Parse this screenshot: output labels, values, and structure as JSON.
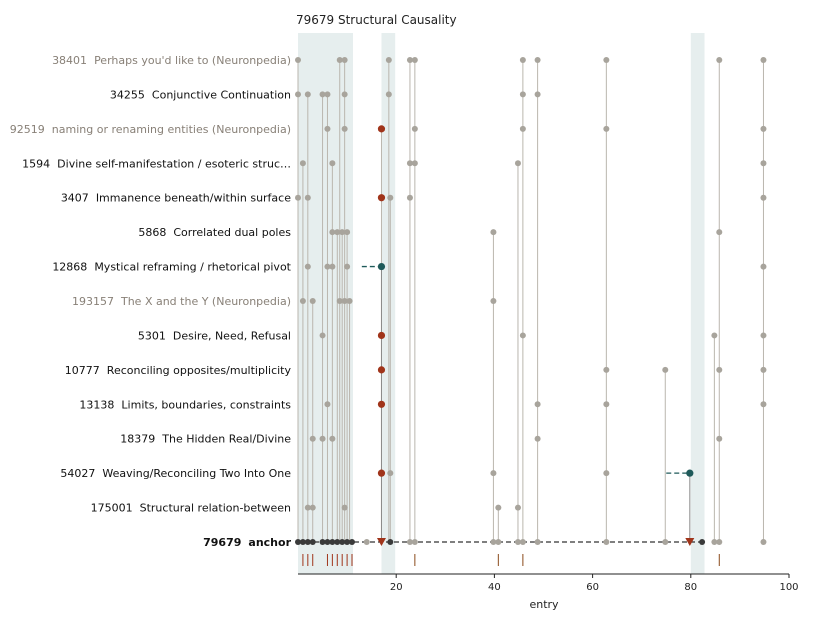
{
  "chart_data": {
    "type": "scatter",
    "title": "79679  Structural Causality",
    "xlabel": "entry",
    "ylabel": "",
    "xlim": [
      0,
      100
    ],
    "xticks": [
      20,
      40,
      60,
      80,
      100
    ],
    "grid": false,
    "shaded_x_ranges": [
      [
        0,
        11.2
      ],
      [
        17,
        19.8
      ],
      [
        80,
        82.8
      ]
    ],
    "colors": {
      "dot": "#a8a49c",
      "line": "#bab6ae",
      "anchor_dot": "#3a3a3a",
      "red": "#a0341a",
      "teal": "#1f5a5a",
      "shade": "#e6eeee",
      "faded_text": "#888077",
      "text": "#111111"
    },
    "rows": [
      {
        "id": "38401",
        "label": "Perhaps you'd like to (Neuronpedia)",
        "faded": true,
        "bold": false,
        "points": [
          0,
          8.5,
          9.5,
          18.5,
          22.8,
          23.8,
          45.8,
          48.8,
          62.8,
          85.8,
          94.8
        ],
        "red": [],
        "teal": []
      },
      {
        "id": "34255",
        "label": "Conjunctive Continuation",
        "faded": false,
        "bold": false,
        "points": [
          0,
          2,
          5,
          6,
          9.5,
          18.5,
          45.8,
          48.8
        ],
        "red": [],
        "teal": []
      },
      {
        "id": "92519",
        "label": "naming or renaming entities (Neuronpedia)",
        "faded": true,
        "bold": false,
        "points": [
          6,
          9.5,
          23.8,
          45.8,
          62.8,
          94.8
        ],
        "red": [
          17
        ],
        "teal": []
      },
      {
        "id": "1594",
        "label": "Divine self-manifestation / esoteric struc…",
        "faded": false,
        "bold": false,
        "points": [
          1,
          7,
          22.8,
          23.8,
          44.8,
          94.8
        ],
        "red": [],
        "teal": []
      },
      {
        "id": "3407",
        "label": "Immanence beneath/within surface",
        "faded": false,
        "bold": false,
        "points": [
          0,
          2,
          18.8,
          22.8,
          94.8
        ],
        "red": [
          17
        ],
        "teal": []
      },
      {
        "id": "5868",
        "label": "Correlated dual poles",
        "faded": false,
        "bold": false,
        "points": [
          7,
          8,
          9,
          10,
          39.8,
          85.8
        ],
        "red": [],
        "teal": []
      },
      {
        "id": "12868",
        "label": "Mystical reframing / rhetorical pivot",
        "faded": false,
        "bold": false,
        "points": [
          2,
          6,
          7,
          10,
          94.8
        ],
        "red": [],
        "teal": [
          17
        ]
      },
      {
        "id": "193157",
        "label": "The X and the Y (Neuronpedia)",
        "faded": true,
        "bold": false,
        "points": [
          1,
          3,
          8.5,
          9.5,
          10.5,
          39.8
        ],
        "red": [],
        "teal": []
      },
      {
        "id": "5301",
        "label": "Desire, Need, Refusal",
        "faded": false,
        "bold": false,
        "points": [
          5,
          45.8,
          84.8,
          94.8
        ],
        "red": [
          17
        ],
        "teal": []
      },
      {
        "id": "10777",
        "label": "Reconciling opposites/multiplicity",
        "faded": false,
        "bold": false,
        "points": [
          62.8,
          74.8,
          85.8,
          94.8
        ],
        "red": [
          17
        ],
        "teal": []
      },
      {
        "id": "13138",
        "label": "Limits, boundaries, constraints",
        "faded": false,
        "bold": false,
        "points": [
          6,
          48.8,
          62.8,
          94.8
        ],
        "red": [
          17
        ],
        "teal": []
      },
      {
        "id": "18379",
        "label": "The Hidden Real/Divine",
        "faded": false,
        "bold": false,
        "points": [
          3,
          5,
          7,
          48.8,
          85.8
        ],
        "red": [],
        "teal": []
      },
      {
        "id": "54027",
        "label": "Weaving/Reconciling Two Into One",
        "faded": false,
        "bold": false,
        "points": [
          18.8,
          39.8,
          62.8
        ],
        "red": [
          17
        ],
        "teal": [
          79.8
        ]
      },
      {
        "id": "175001",
        "label": "Structural relation-between",
        "faded": false,
        "bold": false,
        "points": [
          2,
          3,
          9.5,
          40.8,
          44.8
        ],
        "red": [],
        "teal": []
      },
      {
        "id": "79679",
        "label": "anchor",
        "faded": false,
        "bold": true,
        "points": [
          0,
          1,
          2,
          3,
          5,
          6,
          7,
          8,
          9,
          10,
          11,
          14,
          18.8,
          22.8,
          23.8,
          39.8,
          40.8,
          44.8,
          45.8,
          48.8,
          62.8,
          74.8,
          82.3,
          84.8,
          85.8,
          94.8
        ],
        "red": [
          17,
          79.8
        ],
        "teal": []
      }
    ],
    "connector_lines": [
      {
        "from": [
          17,
          12868
        ],
        "to": [
          17,
          79679
        ]
      },
      {
        "from": [
          79.8,
          54027
        ],
        "to": [
          79.8,
          79679
        ]
      }
    ],
    "dashed_links": [
      {
        "row": "12868",
        "x_from": 13,
        "x_to": 17
      },
      {
        "row": "54027",
        "x_from": 75,
        "x_to": 79.8
      },
      {
        "row": "79679",
        "x_from": 0,
        "x_to": 82.3
      }
    ],
    "rug_ticks": [
      1,
      2,
      3,
      6,
      7,
      8,
      9,
      10,
      11,
      23.8,
      40.8,
      45.8,
      85.8
    ]
  }
}
